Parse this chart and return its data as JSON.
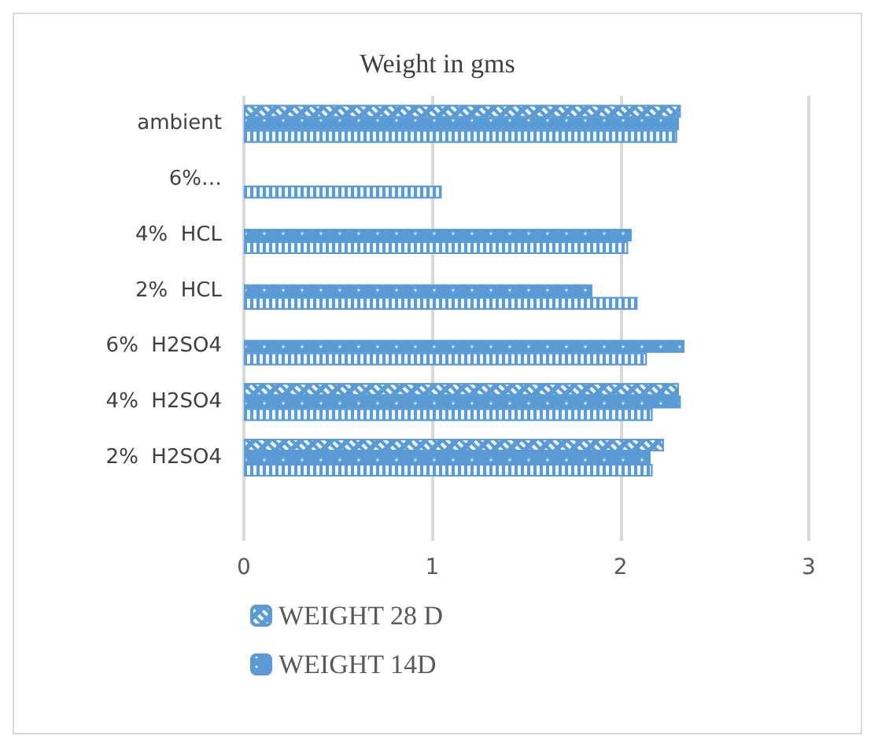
{
  "chart_data": {
    "type": "bar",
    "orientation": "horizontal",
    "title": "Weight in gms",
    "categories": [
      "ambient",
      "6%…",
      "4%  HCL",
      "2%  HCL",
      "6%  H2SO4",
      "4%  H2SO4",
      "2%  H2SO4",
      null
    ],
    "series": [
      {
        "name": "WEIGHT 28 D",
        "color": "#5b9bd5",
        "values": [
          2.32,
          null,
          null,
          null,
          null,
          2.31,
          2.23,
          null
        ]
      },
      {
        "name": "WEIGHT 14D",
        "color": "#5b9bd5",
        "values": [
          2.31,
          null,
          2.06,
          1.85,
          2.34,
          2.32,
          2.16,
          null
        ]
      },
      {
        "color": "#5b9bd5",
        "values": [
          2.3,
          1.05,
          2.04,
          2.09,
          2.14,
          2.17,
          2.17,
          null
        ]
      }
    ],
    "xlim": [
      0,
      3
    ],
    "xticks": [
      0,
      1,
      2,
      3
    ],
    "grid": "x",
    "legend": "bottom"
  }
}
